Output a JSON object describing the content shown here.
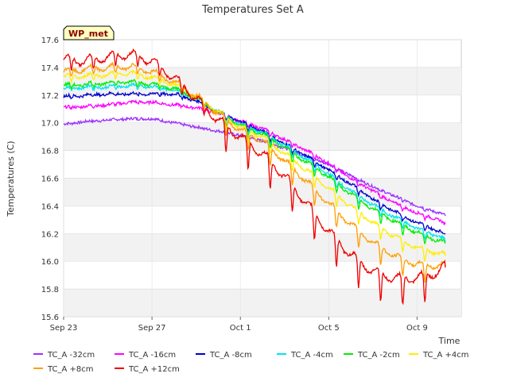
{
  "chart_data": {
    "type": "line",
    "title": "Temperatures Set A",
    "xlabel": "Time",
    "ylabel": "Temperatures (C)",
    "badge": "WP_met",
    "xlim": [
      0,
      18
    ],
    "ylim": [
      15.6,
      17.6
    ],
    "x_ticks": [
      {
        "x": 0,
        "label": "Sep 23"
      },
      {
        "x": 4,
        "label": "Sep 27"
      },
      {
        "x": 8,
        "label": "Oct 1"
      },
      {
        "x": 12,
        "label": "Oct 5"
      },
      {
        "x": 16,
        "label": "Oct 9"
      }
    ],
    "y_ticks": [
      "15.6",
      "15.8",
      "16.0",
      "16.2",
      "16.4",
      "16.6",
      "16.8",
      "17.0",
      "17.2",
      "17.4",
      "17.6"
    ],
    "grid": "horizontal bands",
    "legend_position": "bottom",
    "series": [
      {
        "name": "TC_A -32cm",
        "color": "#9b30ff",
        "amp": 0.01,
        "x": [
          0,
          1,
          2,
          3,
          4,
          5,
          6,
          7,
          8,
          9,
          10,
          11,
          12,
          13,
          14,
          15,
          16,
          17,
          17.3
        ],
        "y": [
          16.99,
          17.01,
          17.02,
          17.03,
          17.03,
          17.0,
          16.97,
          16.94,
          16.91,
          16.87,
          16.82,
          16.76,
          16.7,
          16.62,
          16.54,
          16.47,
          16.4,
          16.35,
          16.33
        ]
      },
      {
        "name": "TC_A -16cm",
        "color": "#ff00ff",
        "amp": 0.02,
        "x": [
          0,
          1,
          2,
          3,
          4,
          5,
          6,
          7,
          8,
          9,
          10,
          11,
          12,
          13,
          14,
          15,
          16,
          17,
          17.3
        ],
        "y": [
          17.11,
          17.12,
          17.13,
          17.15,
          17.15,
          17.13,
          17.11,
          17.07,
          17.01,
          16.96,
          16.88,
          16.8,
          16.71,
          16.6,
          16.51,
          16.42,
          16.35,
          16.3,
          16.26
        ]
      },
      {
        "name": "TC_A -8cm",
        "color": "#0000cd",
        "amp": 0.03,
        "x": [
          0,
          1,
          2,
          3,
          4,
          5,
          6,
          7,
          8,
          9,
          10,
          11,
          12,
          13,
          14,
          15,
          16,
          17,
          17.3
        ],
        "y": [
          17.19,
          17.2,
          17.21,
          17.21,
          17.21,
          17.21,
          17.16,
          17.08,
          17.01,
          16.94,
          16.85,
          16.76,
          16.66,
          16.56,
          16.45,
          16.36,
          16.28,
          16.22,
          16.19
        ]
      },
      {
        "name": "TC_A -4cm",
        "color": "#00e5ee",
        "amp": 0.04,
        "x": [
          0,
          1,
          2,
          3,
          4,
          5,
          6,
          7,
          8,
          9,
          10,
          11,
          12,
          13,
          14,
          15,
          16,
          17,
          17.3
        ],
        "y": [
          17.25,
          17.26,
          17.26,
          17.27,
          17.26,
          17.24,
          17.18,
          17.08,
          16.99,
          16.93,
          16.84,
          16.74,
          16.63,
          16.51,
          16.41,
          16.32,
          16.24,
          16.18,
          16.15
        ]
      },
      {
        "name": "TC_A -2cm",
        "color": "#00ee00",
        "amp": 0.05,
        "x": [
          0,
          1,
          2,
          3,
          4,
          5,
          6,
          7,
          8,
          9,
          10,
          11,
          12,
          13,
          14,
          15,
          16,
          17,
          17.3
        ],
        "y": [
          17.27,
          17.28,
          17.29,
          17.3,
          17.28,
          17.25,
          17.18,
          17.08,
          16.98,
          16.92,
          16.82,
          16.72,
          16.61,
          16.49,
          16.38,
          16.29,
          16.21,
          16.15,
          16.13
        ]
      },
      {
        "name": "TC_A +4cm",
        "color": "#ffee00",
        "amp": 0.06,
        "x": [
          0,
          1,
          2,
          3,
          4,
          5,
          6,
          7,
          8,
          9,
          10,
          11,
          12,
          13,
          14,
          15,
          16,
          17,
          17.3
        ],
        "y": [
          17.33,
          17.34,
          17.35,
          17.36,
          17.33,
          17.28,
          17.19,
          17.08,
          16.97,
          16.9,
          16.78,
          16.66,
          16.53,
          16.4,
          16.28,
          16.18,
          16.1,
          16.06,
          16.05
        ]
      },
      {
        "name": "TC_A +8cm",
        "color": "#ff9f00",
        "amp": 0.09,
        "x": [
          0,
          1,
          2,
          3,
          4,
          5,
          6,
          7,
          8,
          9,
          10,
          11,
          12,
          13,
          14,
          15,
          16,
          17,
          17.3
        ],
        "y": [
          17.37,
          17.39,
          17.4,
          17.41,
          17.37,
          17.3,
          17.2,
          17.07,
          16.95,
          16.87,
          16.73,
          16.58,
          16.42,
          16.27,
          16.14,
          16.04,
          15.98,
          15.97,
          15.98
        ]
      },
      {
        "name": "TC_A +12cm",
        "color": "#ee0000",
        "amp": 0.14,
        "x": [
          0,
          1,
          2,
          3,
          4,
          5,
          6,
          7,
          8,
          9,
          10,
          11,
          12,
          13,
          14,
          15,
          16,
          17,
          17.3
        ],
        "y": [
          17.46,
          17.45,
          17.48,
          17.5,
          17.45,
          17.33,
          17.18,
          17.02,
          16.9,
          16.78,
          16.62,
          16.42,
          16.22,
          16.05,
          15.93,
          15.88,
          15.88,
          15.93,
          15.98
        ]
      }
    ]
  }
}
